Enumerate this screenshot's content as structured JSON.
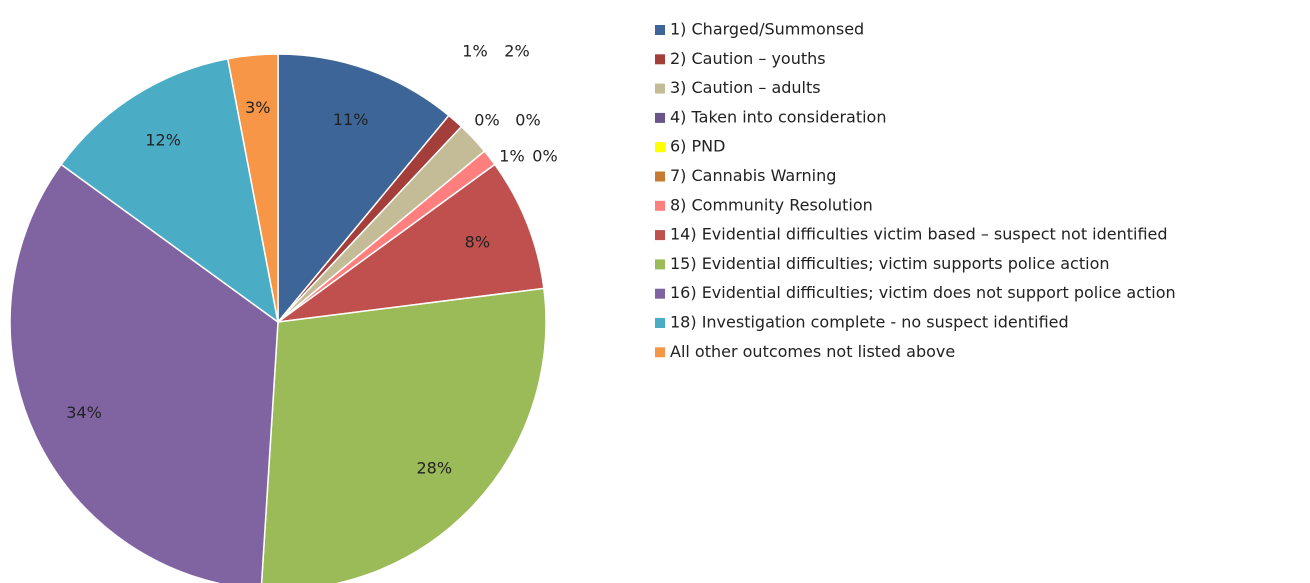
{
  "chart_data": {
    "type": "pie",
    "categories": [
      "1) Charged/Summonsed",
      "2) Caution – youths",
      "3) Caution – adults",
      "4) Taken into consideration",
      "6) PND",
      "7) Cannabis Warning",
      "8) Community Resolution",
      "14) Evidential difficulties victim based – suspect not identified",
      "15) Evidential difficulties; victim supports police action",
      "16) Evidential difficulties; victim does not support police action",
      "18) Investigation complete - no suspect identified",
      "All other outcomes not listed above"
    ],
    "values": [
      11,
      1,
      2,
      0,
      0,
      0,
      1,
      8,
      28,
      34,
      12,
      3
    ],
    "value_labels": [
      "11%",
      "1%",
      "2%",
      "0%",
      "0%",
      "0%",
      "1%",
      "8%",
      "28%",
      "34%",
      "12%",
      "3%"
    ],
    "colors": [
      "#3e6598",
      "#a33e3b",
      "#c4bc96",
      "#6a548a",
      "#ffff00",
      "#c97a32",
      "#ff7f7f",
      "#c0504d",
      "#9bbb59",
      "#8064a2",
      "#4bacc6",
      "#f79646"
    ],
    "legend": "right"
  }
}
